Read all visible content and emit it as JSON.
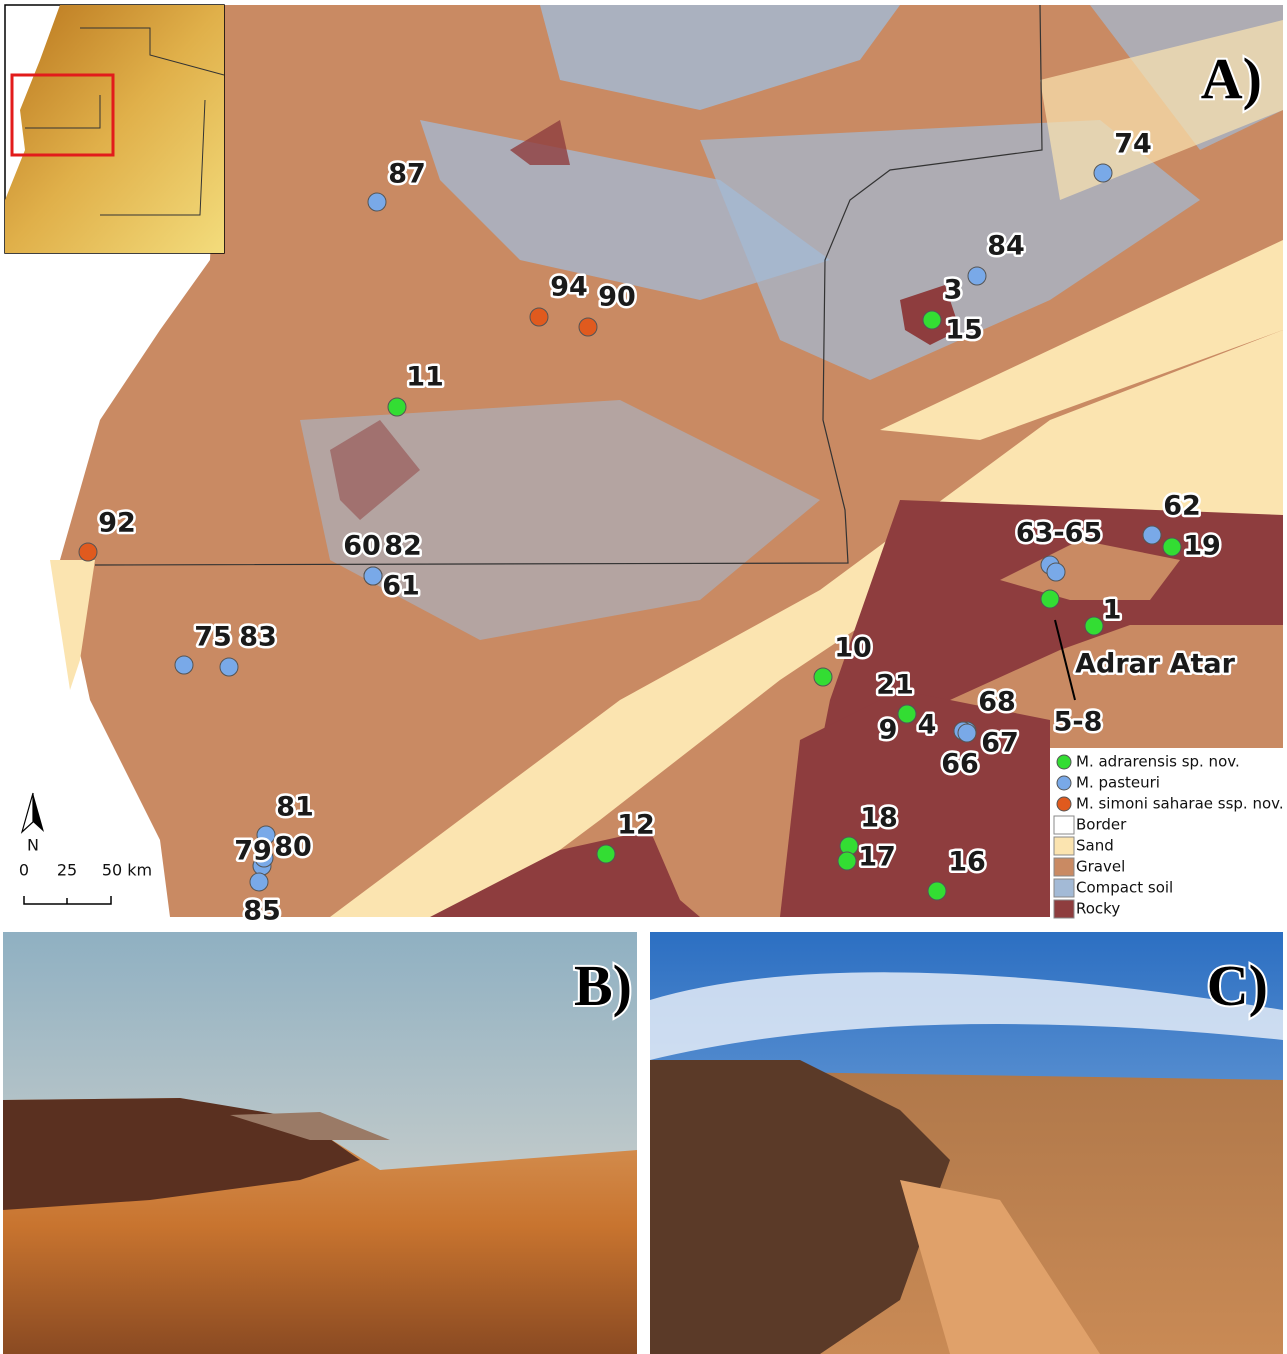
{
  "panels": [
    "A)",
    "B)",
    "C)"
  ],
  "region_label": "Adrar Atar",
  "legend": {
    "species": [
      {
        "name": "M. adrarensis sp. nov.",
        "color": "#33dd33",
        "sites": [
          "11",
          "12",
          "10",
          "21",
          "9",
          "4",
          "18",
          "17",
          "16",
          "5-8",
          "1",
          "19",
          "3",
          "15"
        ]
      },
      {
        "name": "M. pasteuri",
        "color": "#79a9e8",
        "sites": [
          "87",
          "60",
          "82",
          "61",
          "75",
          "83",
          "81",
          "79",
          "80",
          "85",
          "68",
          "67",
          "66",
          "63-65",
          "62",
          "84",
          "74"
        ]
      },
      {
        "name": "M. simoni saharae ssp. nov.",
        "color": "#e05a1e",
        "sites": [
          "94",
          "90",
          "92"
        ]
      }
    ],
    "cover": [
      {
        "name": "Border",
        "color": "#ffffff"
      },
      {
        "name": "Sand",
        "color": "#fbe4b0"
      },
      {
        "name": "Gravel",
        "color": "#c98a63"
      },
      {
        "name": "Compact soil",
        "color": "#a3bad6"
      },
      {
        "name": "Rocky",
        "color": "#8e3d3e"
      }
    ]
  },
  "scale_bar": {
    "north": "N",
    "ticks": [
      "0",
      "25",
      "50 km"
    ]
  }
}
